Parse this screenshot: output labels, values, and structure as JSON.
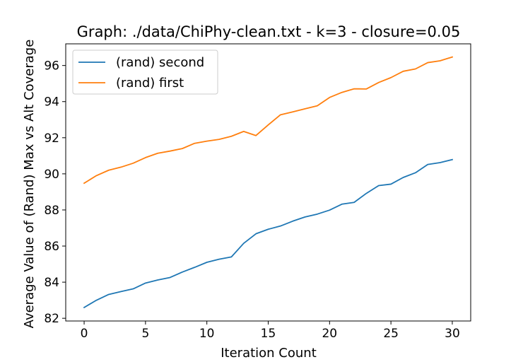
{
  "chart_data": {
    "type": "line",
    "title": "Graph: ./data/ChiPhy-clean.txt - k=3 - closure=0.05",
    "xlabel": "Iteration Count",
    "ylabel": "Average Value of (Rand) Max vs Alt Coverage",
    "xlim": [
      -1.5,
      31.5
    ],
    "ylim": [
      81.85,
      97.2
    ],
    "xticks": [
      0,
      5,
      10,
      15,
      20,
      25,
      30
    ],
    "yticks": [
      82,
      84,
      86,
      88,
      90,
      92,
      94,
      96
    ],
    "grid": false,
    "legend_position": "upper-left",
    "x": [
      0,
      1,
      2,
      3,
      4,
      5,
      6,
      7,
      8,
      9,
      10,
      11,
      12,
      13,
      14,
      15,
      16,
      17,
      18,
      19,
      20,
      21,
      22,
      23,
      24,
      25,
      26,
      27,
      28,
      29,
      30
    ],
    "series": [
      {
        "name": "(rand) second",
        "color": "#1f77b4",
        "values": [
          82.6,
          83.0,
          83.32,
          83.48,
          83.63,
          83.95,
          84.12,
          84.26,
          84.56,
          84.82,
          85.1,
          85.27,
          85.4,
          86.15,
          86.68,
          86.93,
          87.11,
          87.38,
          87.61,
          87.77,
          87.99,
          88.32,
          88.42,
          88.92,
          89.35,
          89.43,
          89.8,
          90.06,
          90.52,
          90.62,
          90.79
        ]
      },
      {
        "name": "(rand) first",
        "color": "#ff7f0e",
        "values": [
          89.48,
          89.9,
          90.2,
          90.37,
          90.59,
          90.9,
          91.14,
          91.26,
          91.4,
          91.69,
          91.81,
          91.91,
          92.08,
          92.35,
          92.12,
          92.71,
          93.27,
          93.43,
          93.6,
          93.77,
          94.23,
          94.51,
          94.71,
          94.7,
          95.06,
          95.33,
          95.68,
          95.81,
          96.16,
          96.26,
          96.47
        ]
      }
    ]
  }
}
